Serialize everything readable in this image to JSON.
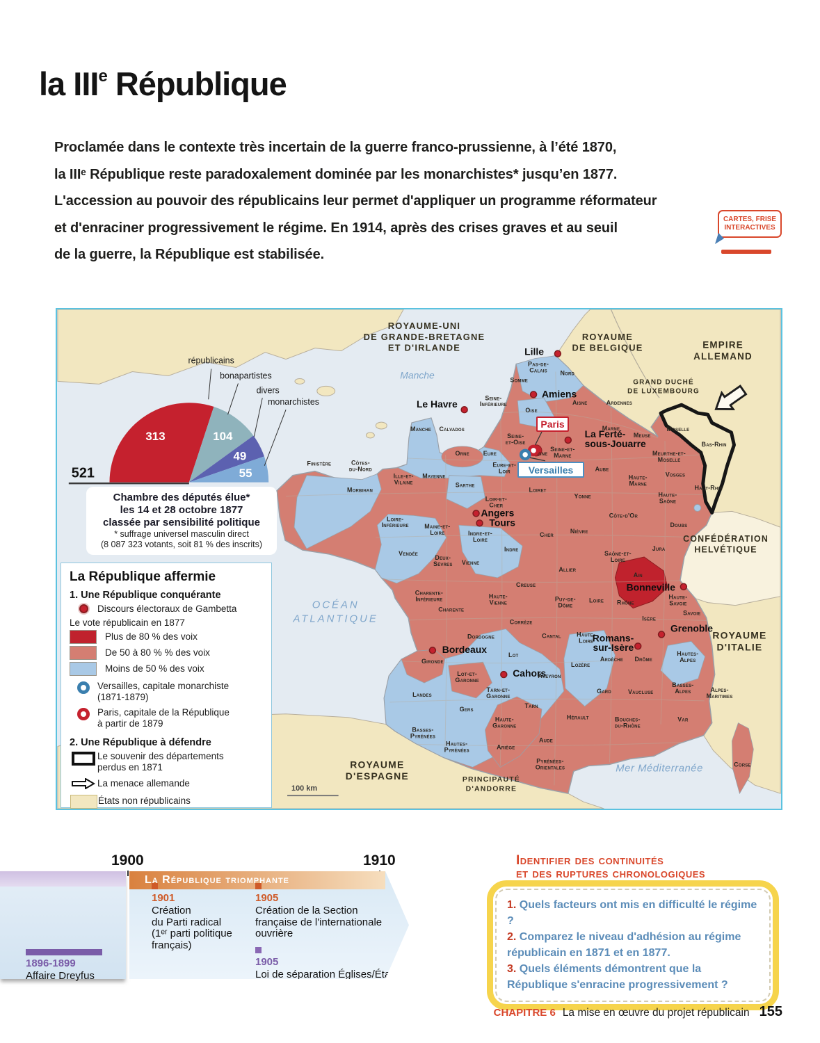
{
  "colors": {
    "accent_red": "#c5212e",
    "dark_red": "#c0222d",
    "salmon": "#d47e72",
    "light_blue": "#a9c9e6",
    "cream": "#f2e7c0",
    "cream_light": "#f8f2de",
    "sea": "#e4ebf2",
    "orange": "#d9472b",
    "timeline_orange": "#cf5a28",
    "timeline_purple": "#7a5ca8",
    "question_blue": "#5b8cb8",
    "yellow": "#f6d44c",
    "map_frame": "#5bc2e0"
  },
  "page": {
    "title_main": "la III",
    "title_sup": "e",
    "title_rest": " République",
    "intro_lines": [
      "Proclamée dans le contexte très incertain de la guerre franco-prussienne, à l’été 1870,",
      "la IIIᵉ République reste paradoxalement dominée par les monarchistes* jusqu’en 1877.",
      "L'accession au pouvoir des républicains leur permet d'appliquer un programme réformateur",
      "et d'enraciner progressivement le régime. En 1914, après des crises graves et au seuil",
      "de la guerre, la République est stabilisée."
    ]
  },
  "badge": {
    "line1": "CARTES, FRISE",
    "line2": "INTERACTIVES"
  },
  "chart_data": {
    "type": "pie",
    "shape": "semicircle",
    "title": "Chambre des députés élue les 14 et 28 octobre 1877 classée par sensibilité politique",
    "categories": [
      "républicains",
      "bonapartistes",
      "divers",
      "monarchistes"
    ],
    "values": [
      313,
      104,
      49,
      55
    ],
    "total": 521,
    "colors": [
      "#c5212e",
      "#8fb3bc",
      "#5c61b0",
      "#7fabd7"
    ],
    "legend_position": "top-right",
    "grid": false
  },
  "chart_caption": {
    "title_lines": [
      "Chambre des députés élue*",
      "les 14 et 28 octobre 1877",
      "classée par sensibilité politique"
    ],
    "note_lines": [
      "* suffrage universel masculin direct",
      "(8 087 323 votants, soit 81 % des inscrits)"
    ]
  },
  "legend": {
    "title": "La République affermie",
    "s1_heading": "1. Une République conquérante",
    "gambetta": "Discours électoraux de Gambetta",
    "vote_heading": "Le vote républicain en 1877",
    "vote_levels": [
      {
        "label": "Plus de 80 % des voix",
        "color": "#c0222d"
      },
      {
        "label": "De 50 à 80 % % des voix",
        "color": "#d47e72"
      },
      {
        "label": "Moins de 50 % des voix",
        "color": "#a9c9e6"
      }
    ],
    "versailles_l1": "Versailles, capitale monarchiste",
    "versailles_l2": "(1871-1879)",
    "paris_l1": "Paris, capitale de la République",
    "paris_l2": "à partir de 1879",
    "s2_heading": "2. Une République à défendre",
    "souvenir_l1": "Le souvenir des départements",
    "souvenir_l2": "perdus en 1871",
    "menace": "La menace allemande",
    "etats": "États non républicains"
  },
  "map": {
    "scale_label": "100 km",
    "countries": [
      [
        "ROYAUME-UNI|DE GRANDE-BRETAGNE|ET D'IRLANDE",
        530,
        28,
        13
      ],
      [
        "ROYAUME|DE BELGIQUE",
        795,
        44,
        13
      ],
      [
        "EMPIRE|ALLEMAND",
        962,
        56,
        13.5
      ],
      [
        "GRAND DUCHÉ|DE LUXEMBOURG",
        876,
        108,
        10
      ],
      [
        "CONFÉDÉRATION|HELVÉTIQUE",
        966,
        336,
        12.5
      ],
      [
        "ROYAUME|D'ITALIE",
        986,
        476,
        14
      ],
      [
        "ROYAUME|D'ESPAGNE",
        462,
        663,
        14
      ],
      [
        "PRINCIPAUTÉ|D'ANDORRE",
        627,
        683,
        10.5
      ]
    ],
    "seas": [
      [
        "Manche",
        520,
        100,
        14,
        0
      ],
      [
        "OCÉAN|ATLANTIQUE",
        402,
        432,
        15,
        3
      ],
      [
        "Mer Méditerranée",
        870,
        668,
        15,
        0.5
      ]
    ],
    "capitals": [
      {
        "label": "Paris",
        "style": "red"
      },
      {
        "label": "Versailles",
        "style": "blue"
      }
    ],
    "cities": [
      [
        "Lille",
        703,
        66,
        "end",
        723,
        64
      ],
      [
        "Amiens",
        700,
        127,
        "start",
        688,
        123
      ],
      [
        "Le Havre",
        578,
        142,
        "end",
        588,
        145
      ],
      [
        "La Ferté-|sous-Jouarre",
        762,
        185,
        "start",
        738,
        189
      ],
      [
        "Angers",
        612,
        299,
        "start",
        605,
        295
      ],
      [
        "Tours",
        624,
        313,
        "start",
        610,
        309
      ],
      [
        "Bordeaux",
        556,
        497,
        "start",
        542,
        493
      ],
      [
        "Cahors",
        658,
        531,
        "start",
        645,
        528
      ],
      [
        "Bonneville",
        893,
        407,
        "end",
        905,
        401
      ],
      [
        "Grenoble",
        886,
        466,
        "start",
        873,
        470
      ],
      [
        "Romans-|sur-Isère",
        833,
        480,
        "end",
        839,
        487
      ]
    ],
    "departments": [
      [
        "Pas-de-Calais",
        695,
        82
      ],
      [
        "Nord",
        737,
        95
      ],
      [
        "Somme",
        667,
        105
      ],
      [
        "Seine-Inférieure",
        630,
        131
      ],
      [
        "Oise",
        685,
        149
      ],
      [
        "Aisne",
        755,
        138
      ],
      [
        "Ardennes",
        812,
        138
      ],
      [
        "Manche",
        525,
        176
      ],
      [
        "Calvados",
        570,
        176
      ],
      [
        "Eure",
        625,
        211
      ],
      [
        "Orne",
        585,
        211
      ],
      [
        "Seine-et-Oise",
        662,
        186
      ],
      [
        "Seine",
        698,
        211
      ],
      [
        "Seine-et-Marne",
        730,
        205
      ],
      [
        "Marne",
        800,
        175
      ],
      [
        "Meuse",
        845,
        185
      ],
      [
        "Moselle",
        897,
        176
      ],
      [
        "Meurthe-et-Moselle",
        884,
        211
      ],
      [
        "Bas-Rhin",
        949,
        198
      ],
      [
        "Haut-Rhin",
        941,
        261
      ],
      [
        "Vosges",
        893,
        242
      ],
      [
        "Haute-Marne",
        839,
        246
      ],
      [
        "Aube",
        787,
        234
      ],
      [
        "Finistère",
        378,
        226
      ],
      [
        "Côtes-du-Nord",
        438,
        225
      ],
      [
        "Ille-et-Vilaine",
        500,
        244
      ],
      [
        "Mayenne",
        544,
        244
      ],
      [
        "Morbihan",
        437,
        264
      ],
      [
        "Sarthe",
        589,
        257
      ],
      [
        "Eure-et-Loir",
        646,
        228
      ],
      [
        "Loiret",
        694,
        264
      ],
      [
        "Yonne",
        759,
        273
      ],
      [
        "Loir-et-Cher",
        634,
        277
      ],
      [
        "Loire-Inférieure",
        488,
        306
      ],
      [
        "Maine-et-Loire",
        549,
        317
      ],
      [
        "Indre-et-Loire",
        611,
        327
      ],
      [
        "Vendée",
        507,
        356
      ],
      [
        "Deux-Sèvres",
        557,
        362
      ],
      [
        "Vienne",
        597,
        369
      ],
      [
        "Indre",
        656,
        350
      ],
      [
        "Cher",
        707,
        329
      ],
      [
        "Nièvre",
        754,
        324
      ],
      [
        "Côte-d'Or",
        818,
        301
      ],
      [
        "Haute-Saône",
        882,
        271
      ],
      [
        "Doubs",
        898,
        315
      ],
      [
        "Jura",
        869,
        349
      ],
      [
        "Saône-et-Loire",
        810,
        356
      ],
      [
        "Charente-Inférieure",
        537,
        413
      ],
      [
        "Charente",
        569,
        437
      ],
      [
        "Haute-Vienne",
        637,
        418
      ],
      [
        "Creuse",
        677,
        401
      ],
      [
        "Allier",
        737,
        379
      ],
      [
        "Puy-de-Dôme",
        734,
        422
      ],
      [
        "Loire",
        779,
        424
      ],
      [
        "Rhône",
        821,
        427
      ],
      [
        "Ain",
        839,
        387
      ],
      [
        "Haute-Savoie",
        897,
        419
      ],
      [
        "Savoie",
        917,
        442
      ],
      [
        "Isère",
        855,
        450
      ],
      [
        "Corrèze",
        670,
        455
      ],
      [
        "Cantal",
        714,
        475
      ],
      [
        "Haute-Loire",
        764,
        473
      ],
      [
        "Lozère",
        756,
        517
      ],
      [
        "Ardèche",
        801,
        509
      ],
      [
        "Drôme",
        847,
        509
      ],
      [
        "Hautes-Alpes",
        911,
        501
      ],
      [
        "Dordogne",
        612,
        476
      ],
      [
        "Gironde",
        542,
        512
      ],
      [
        "Lot",
        659,
        503
      ],
      [
        "Lot-et-Garonne",
        592,
        530
      ],
      [
        "Tarn-et-Garonne",
        637,
        553
      ],
      [
        "Aveyron",
        711,
        533
      ],
      [
        "Landes",
        527,
        560
      ],
      [
        "Gers",
        591,
        581
      ],
      [
        "Basses-Pyrénées",
        528,
        611
      ],
      [
        "Hautes-Pyrénées",
        577,
        631
      ],
      [
        "Haute-Garonne",
        646,
        596
      ],
      [
        "Ariège",
        648,
        636
      ],
      [
        "Tarn",
        685,
        576
      ],
      [
        "Aude",
        706,
        626
      ],
      [
        "Hérault",
        752,
        593
      ],
      [
        "Pyrénées-Orientales",
        712,
        656
      ],
      [
        "Gard",
        790,
        555
      ],
      [
        "Vaucluse",
        843,
        556
      ],
      [
        "Basses-Alpes",
        904,
        546
      ],
      [
        "Alpes-Maritimes",
        957,
        553
      ],
      [
        "Bouches-du-Rhône",
        824,
        596
      ],
      [
        "Var",
        904,
        596
      ],
      [
        "Corse",
        990,
        661
      ]
    ]
  },
  "timeline": {
    "year_left": "1900",
    "year_right": "1910",
    "banner": "La République triomphante",
    "events": [
      {
        "year": "1901",
        "lines": [
          "Création",
          "du Parti radical",
          "(1ᵉʳ parti politique",
          "français)"
        ]
      },
      {
        "year": "1905",
        "lines": [
          "Création de la Section",
          "française de l'internationale",
          "ouvrière"
        ]
      },
      {
        "year": "1905",
        "lines": [
          "Loi de séparation Églises/État"
        ]
      }
    ],
    "left_event": {
      "range": "1896-1899",
      "label": "Affaire Dreyfus"
    }
  },
  "questions": {
    "heading_l1": "Identifier des continuités",
    "heading_l2": "et des ruptures chronologiques",
    "items": [
      {
        "num": "1.",
        "text": "Quels facteurs ont mis en difficulté le régime ?"
      },
      {
        "num": "2.",
        "text": "Comparez le niveau d'adhésion au régime républicain en 1871 et en 1877."
      },
      {
        "num": "3.",
        "text": "Quels éléments démontrent que la République s'enracine progressivement ?"
      }
    ]
  },
  "footer": {
    "chapter": "CHAPITRE 6",
    "title": "La mise en œuvre du projet républicain",
    "page": "155"
  }
}
